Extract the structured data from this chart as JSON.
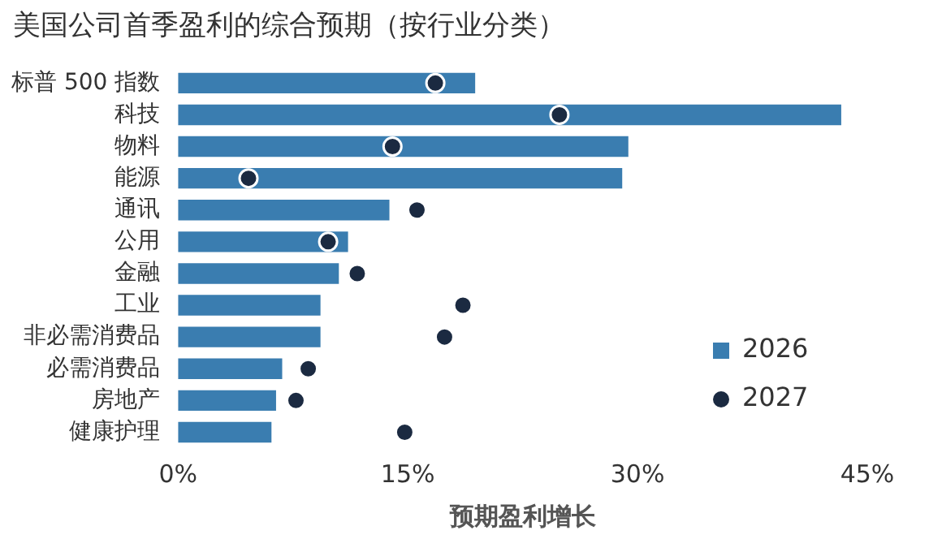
{
  "chart_data": {
    "type": "bar",
    "orientation": "horizontal",
    "title": "美国公司首季盈利的综合预期（按行业分类）",
    "xlabel": "预期盈利增长",
    "categories": [
      "标普 500 指数",
      "科技",
      "物料",
      "能源",
      "通讯",
      "公用",
      "金融",
      "工业",
      "非必需消费品",
      "必需消费品",
      "房地产",
      "健康护理"
    ],
    "series": [
      {
        "name": "2026",
        "color": "#3a7db0",
        "values": [
          19.4,
          43.3,
          29.4,
          29.0,
          13.8,
          11.1,
          10.5,
          9.3,
          9.3,
          6.8,
          6.4,
          6.1
        ]
      },
      {
        "name": "2027",
        "type": "scatter",
        "color": "#1b2a41",
        "values": [
          16.8,
          24.9,
          14.0,
          4.6,
          15.6,
          9.8,
          11.7,
          18.6,
          17.4,
          8.5,
          7.7,
          14.8
        ]
      }
    ],
    "xlim": [
      0,
      45
    ],
    "xticks": [
      {
        "value": 0,
        "label": "0%"
      },
      {
        "value": 15,
        "label": "15%"
      },
      {
        "value": 30,
        "label": "30%"
      },
      {
        "value": 45,
        "label": "45%"
      }
    ],
    "grid": false,
    "legend": "bottom right",
    "marker": "circle"
  }
}
